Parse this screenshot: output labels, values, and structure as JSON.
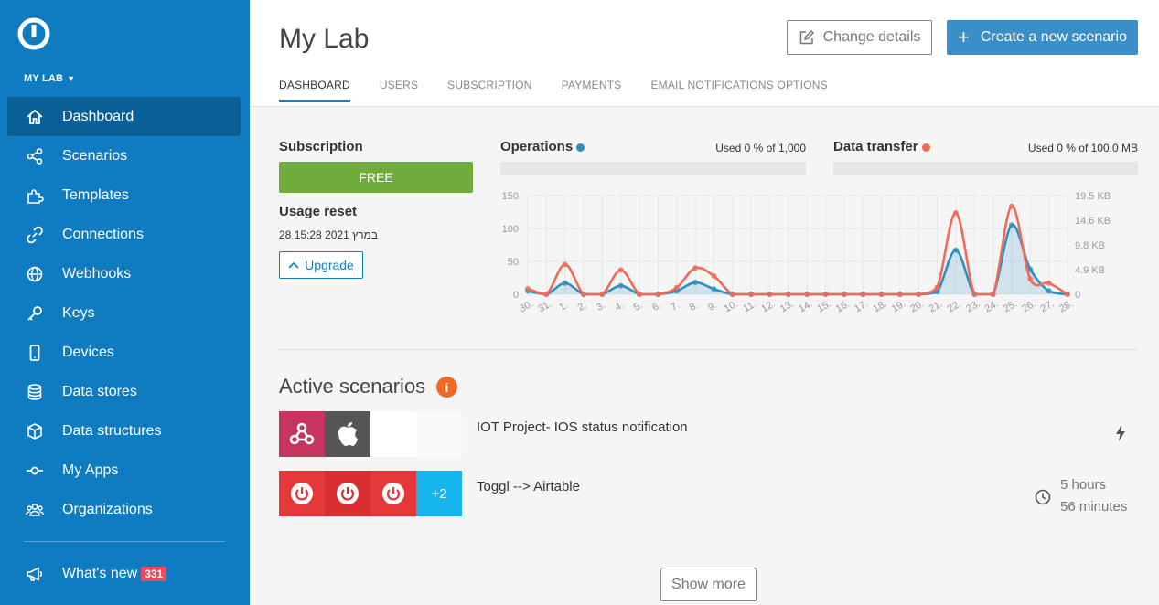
{
  "sidebar": {
    "org_label": "MY LAB",
    "items": [
      {
        "label": "Dashboard",
        "icon": "home-icon",
        "active": true
      },
      {
        "label": "Scenarios",
        "icon": "share-icon"
      },
      {
        "label": "Templates",
        "icon": "puzzle-icon"
      },
      {
        "label": "Connections",
        "icon": "link-icon"
      },
      {
        "label": "Webhooks",
        "icon": "globe-icon"
      },
      {
        "label": "Keys",
        "icon": "key-icon"
      },
      {
        "label": "Devices",
        "icon": "phone-icon"
      },
      {
        "label": "Data stores",
        "icon": "database-icon"
      },
      {
        "label": "Data structures",
        "icon": "cube-icon"
      },
      {
        "label": "My Apps",
        "icon": "node-icon"
      },
      {
        "label": "Organizations",
        "icon": "users-icon"
      }
    ],
    "whats_new": {
      "label": "What's new",
      "badge": "331"
    }
  },
  "header": {
    "title": "My Lab",
    "change_details_label": "Change details",
    "create_label": "Create a new scenario",
    "tabs": [
      "DASHBOARD",
      "USERS",
      "SUBSCRIPTION",
      "PAYMENTS",
      "EMAIL NOTIFICATIONS OPTIONS"
    ]
  },
  "subscription": {
    "title": "Subscription",
    "plan": "FREE",
    "usage_reset_title": "Usage reset",
    "usage_reset_date": "28 במרץ 2021 15:28",
    "upgrade_label": "Upgrade"
  },
  "usage": {
    "operations": {
      "label": "Operations",
      "used": "Used 0 % of 1,000",
      "color": "#2f8fc3"
    },
    "transfer": {
      "label": "Data transfer",
      "used": "Used 0 % of 100.0 MB",
      "color": "#ef6b55"
    }
  },
  "chart_data": {
    "type": "line",
    "categories": [
      "30.",
      "31.",
      "1.",
      "2.",
      "3.",
      "4.",
      "5.",
      "6.",
      "7.",
      "8.",
      "9.",
      "10.",
      "11.",
      "12.",
      "13.",
      "14.",
      "15.",
      "16.",
      "17.",
      "18.",
      "19.",
      "20.",
      "21.",
      "22.",
      "23.",
      "24.",
      "25.",
      "26.",
      "27.",
      "28."
    ],
    "y_left_ticks": [
      "150",
      "100",
      "50",
      "0"
    ],
    "y_left_range": [
      0,
      150
    ],
    "y_right_ticks": [
      "19.5 KB",
      "14.6 KB",
      "9.8 KB",
      "4.9 KB",
      "0"
    ],
    "y_right_range": [
      0,
      19.5
    ],
    "series": [
      {
        "name": "Operations",
        "axis": "left",
        "color": "#2f8fc3",
        "values": [
          5,
          0,
          17,
          0,
          0,
          13,
          0,
          0,
          5,
          18,
          8,
          0,
          0,
          0,
          0,
          0,
          0,
          0,
          0,
          0,
          0,
          0,
          4,
          67,
          0,
          0,
          105,
          38,
          5,
          0
        ]
      },
      {
        "name": "Data transfer",
        "axis": "right",
        "color": "#ef6b55",
        "values": [
          1.1,
          0,
          5.9,
          0,
          0,
          4.8,
          0,
          0,
          1.3,
          5.2,
          3.6,
          0,
          0,
          0,
          0,
          0,
          0,
          0,
          0,
          0,
          0,
          0,
          1.4,
          16.1,
          0,
          0,
          17.4,
          3.0,
          2.2,
          0
        ]
      }
    ],
    "grid": true
  },
  "active_scenarios": {
    "title": "Active scenarios",
    "items": [
      {
        "name": "IOT Project- IOS status notification",
        "modules": [
          "webhook-icon",
          "apple-icon"
        ],
        "status": "instant-icon"
      },
      {
        "name": "Toggl --> Airtable",
        "modules": [
          "toggl-icon",
          "toggl-icon",
          "toggl-icon"
        ],
        "more": "+2",
        "schedule_line1": "5 hours",
        "schedule_line2": "56 minutes"
      }
    ],
    "show_more_label": "Show more"
  }
}
